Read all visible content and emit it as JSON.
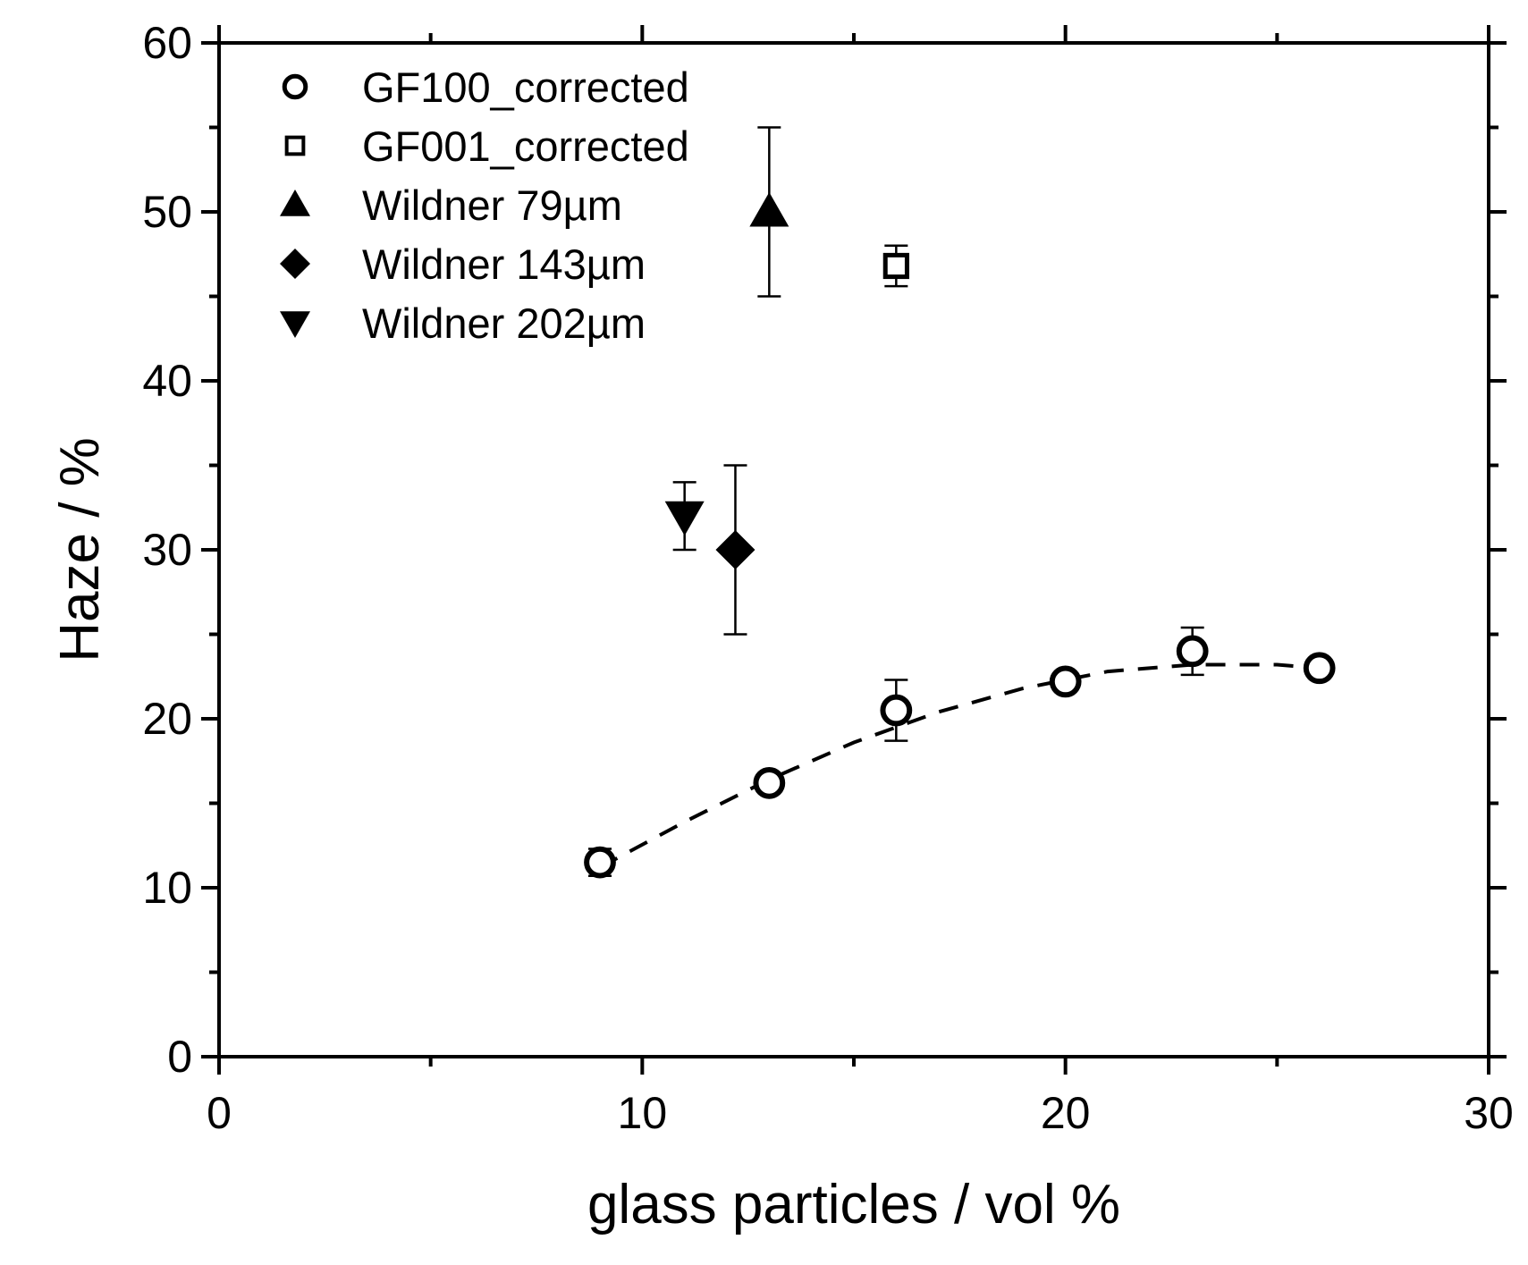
{
  "chart_data": {
    "type": "scatter",
    "title": "",
    "xlabel": "glass particles / vol %",
    "ylabel": "Haze / %",
    "xlim": [
      0,
      30
    ],
    "ylim": [
      0,
      60
    ],
    "xticks": [
      0,
      10,
      20,
      30
    ],
    "yticks": [
      0,
      10,
      20,
      30,
      40,
      50,
      60
    ],
    "grid": false,
    "legend_position": "top-left",
    "series": [
      {
        "name": "GF100_corrected",
        "marker": "circle-open",
        "points": [
          {
            "x": 9,
            "y": 11.5,
            "err": 0.8
          },
          {
            "x": 13,
            "y": 16.2,
            "err": 0.4
          },
          {
            "x": 16,
            "y": 20.5,
            "err": 1.8
          },
          {
            "x": 20,
            "y": 22.2,
            "err": 0.4
          },
          {
            "x": 23,
            "y": 24.0,
            "err": 1.4
          },
          {
            "x": 26,
            "y": 23.0,
            "err": 0.4
          }
        ]
      },
      {
        "name": "GF001_corrected",
        "marker": "square-open",
        "points": [
          {
            "x": 16,
            "y": 46.8,
            "err": 1.2
          }
        ]
      },
      {
        "name": "Wildner 79µm",
        "marker": "triangle-up-filled",
        "points": [
          {
            "x": 13,
            "y": 50,
            "err": 5
          }
        ]
      },
      {
        "name": "Wildner 143µm",
        "marker": "diamond-filled",
        "points": [
          {
            "x": 12.2,
            "y": 30,
            "err": 5
          }
        ]
      },
      {
        "name": "Wildner 202µm",
        "marker": "triangle-down-filled",
        "points": [
          {
            "x": 11,
            "y": 32,
            "err": 2
          }
        ]
      }
    ],
    "fit_line": {
      "style": "dashed",
      "points": [
        {
          "x": 9,
          "y": 11.2
        },
        {
          "x": 11,
          "y": 13.9
        },
        {
          "x": 13,
          "y": 16.4
        },
        {
          "x": 15,
          "y": 18.6
        },
        {
          "x": 17,
          "y": 20.4
        },
        {
          "x": 19,
          "y": 21.8
        },
        {
          "x": 21,
          "y": 22.8
        },
        {
          "x": 23,
          "y": 23.2
        },
        {
          "x": 25,
          "y": 23.2
        },
        {
          "x": 26,
          "y": 23.0
        }
      ]
    }
  }
}
